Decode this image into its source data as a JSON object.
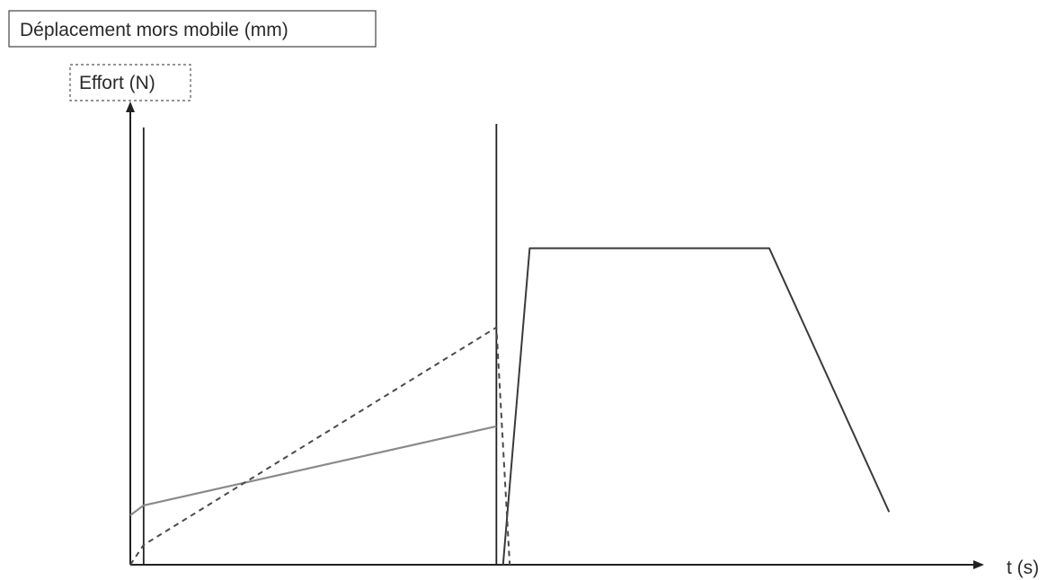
{
  "chart_data": {
    "type": "line",
    "ylabel_displacement": "Déplacement mors mobile (mm)",
    "ylabel_force": "Effort (N)",
    "xlabel": "t (s)",
    "grid": false,
    "legend": "none",
    "x_markers": [
      1,
      27.5
    ],
    "series": [
      {
        "style": "solid-dark",
        "color": "#3a3a3a",
        "points": [
          [
            28,
            0
          ],
          [
            30,
            9.6
          ],
          [
            48,
            9.6
          ],
          [
            57,
            1.6
          ]
        ]
      },
      {
        "style": "solid-gray",
        "color": "#8a8a8a",
        "points": [
          [
            0,
            1.5
          ],
          [
            1,
            1.8
          ],
          [
            27.5,
            4.2
          ]
        ]
      },
      {
        "style": "dashed",
        "color": "#4a4a4a",
        "points": [
          [
            0,
            0
          ],
          [
            1,
            0.6
          ],
          [
            27.5,
            7.2
          ],
          [
            28.5,
            0
          ]
        ]
      }
    ],
    "xlim": [
      0,
      64
    ],
    "ylim": [
      0,
      14
    ]
  }
}
